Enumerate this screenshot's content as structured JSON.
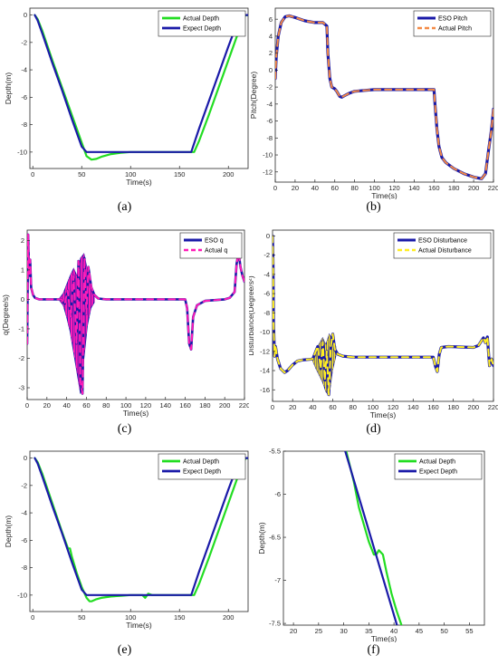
{
  "chart_data": [
    {
      "type": "line",
      "panel_label": "(a)",
      "title": "",
      "xlabel": "Time(s)",
      "ylabel": "Depth(m)",
      "xlim": [
        -3,
        222
      ],
      "ylim": [
        -11.2,
        0.5
      ],
      "xticks": [
        0,
        50,
        100,
        150,
        200
      ],
      "yticks": [
        0,
        -2,
        -4,
        -6,
        -8,
        -10
      ],
      "grid": false,
      "legend_position": "top-right",
      "series": [
        {
          "name": "Actual Depth",
          "color": "#22dd22",
          "width": 2.2,
          "x": [
            2,
            5,
            10,
            20,
            30,
            40,
            50,
            55,
            60,
            65,
            70,
            80,
            90,
            100,
            130,
            160,
            165,
            170,
            180,
            190,
            200,
            210,
            215,
            218,
            220
          ],
          "y": [
            0,
            -0.3,
            -1.2,
            -3.3,
            -5.3,
            -7.3,
            -9.3,
            -10.3,
            -10.55,
            -10.5,
            -10.35,
            -10.15,
            -10.05,
            -10,
            -10,
            -10,
            -10,
            -9.2,
            -7.3,
            -5.3,
            -3.3,
            -1.3,
            -0.2,
            0,
            0
          ]
        },
        {
          "name": "Expect Depth",
          "color": "#1a1aa8",
          "width": 2.2,
          "x": [
            2,
            5,
            10,
            20,
            30,
            40,
            50,
            55,
            100,
            130,
            162,
            170,
            180,
            190,
            200,
            210,
            213,
            215,
            220
          ],
          "y": [
            0,
            -0.4,
            -1.4,
            -3.5,
            -5.5,
            -7.6,
            -9.6,
            -10,
            -10,
            -10,
            -10,
            -8.3,
            -6.3,
            -4.3,
            -2.3,
            -0.4,
            0,
            0,
            0
          ]
        }
      ]
    },
    {
      "type": "line",
      "panel_label": "(b)",
      "title": "",
      "xlabel": "Time(s)",
      "ylabel": "Pitch(Degree)",
      "xlim": [
        0,
        220
      ],
      "ylim": [
        -13.2,
        7.3
      ],
      "xticks": [
        0,
        20,
        40,
        60,
        80,
        100,
        120,
        140,
        160,
        180,
        200,
        220
      ],
      "yticks": [
        6,
        4,
        2,
        0,
        -2,
        -4,
        -6,
        -8,
        -10,
        -12
      ],
      "grid": false,
      "legend_position": "top-right",
      "series": [
        {
          "name": "ESO Pitch",
          "color": "#1a1aa8",
          "width": 3.2,
          "x": [
            0,
            1,
            3,
            6,
            10,
            14,
            20,
            30,
            40,
            48,
            52,
            53,
            55,
            57,
            60,
            62,
            65,
            67,
            70,
            75,
            80,
            90,
            100,
            130,
            160,
            161,
            163,
            165,
            168,
            172,
            180,
            190,
            200,
            208,
            212,
            215,
            218,
            220
          ],
          "y": [
            -1,
            1.5,
            4,
            5.6,
            6.3,
            6.4,
            6.2,
            5.8,
            5.6,
            5.6,
            5.2,
            2,
            -1,
            -2,
            -2.2,
            -2.5,
            -3.1,
            -3.2,
            -3,
            -2.7,
            -2.5,
            -2.4,
            -2.3,
            -2.3,
            -2.3,
            -4,
            -7,
            -9,
            -10.3,
            -10.9,
            -11.6,
            -12.2,
            -12.6,
            -12.8,
            -12.2,
            -9.5,
            -7,
            -4.6
          ]
        },
        {
          "name": "Actual Pitch",
          "color": "#f48a45",
          "width": 2,
          "dash": "7,5",
          "x": [
            0,
            1,
            3,
            6,
            10,
            14,
            20,
            30,
            40,
            48,
            52,
            53,
            55,
            57,
            60,
            62,
            65,
            67,
            70,
            75,
            80,
            90,
            100,
            130,
            160,
            161,
            163,
            165,
            168,
            172,
            180,
            190,
            200,
            208,
            212,
            215,
            218,
            220
          ],
          "y": [
            -1,
            1.5,
            4,
            5.6,
            6.3,
            6.4,
            6.2,
            5.8,
            5.6,
            5.6,
            5.2,
            2,
            -1,
            -2,
            -2.2,
            -2.5,
            -3.1,
            -3.2,
            -3,
            -2.7,
            -2.5,
            -2.4,
            -2.3,
            -2.3,
            -2.3,
            -4,
            -7,
            -9,
            -10.3,
            -10.9,
            -11.6,
            -12.2,
            -12.6,
            -12.8,
            -12.2,
            -9.5,
            -7,
            -4.6
          ]
        }
      ]
    },
    {
      "type": "line",
      "panel_label": "(c)",
      "title": "",
      "xlabel": "Time(s)",
      "ylabel": "q(Degree/s)",
      "xlim": [
        0,
        220
      ],
      "ylim": [
        -3.4,
        2.35
      ],
      "xticks": [
        0,
        20,
        40,
        60,
        80,
        100,
        120,
        140,
        160,
        180,
        200,
        220
      ],
      "yticks": [
        2,
        1,
        0,
        -1,
        -2,
        -3
      ],
      "grid": false,
      "legend_position": "top-right",
      "series": [
        {
          "name": "ESO q",
          "color": "#1a1aa8",
          "width": 2.6,
          "x": [
            0,
            1,
            2,
            3,
            4,
            6,
            8,
            12,
            20,
            30,
            35,
            38,
            41,
            44,
            47,
            50,
            52,
            54,
            56,
            58,
            60,
            62,
            65,
            68,
            72,
            80,
            100,
            130,
            160,
            162,
            164,
            166,
            168,
            172,
            180,
            200,
            205,
            210,
            212,
            214,
            216,
            218,
            220
          ],
          "y": [
            -1.5,
            2.2,
            0.8,
            1.35,
            0.4,
            0.15,
            0.05,
            0,
            0,
            0,
            0,
            -0.15,
            0.3,
            -0.6,
            0.8,
            -1.5,
            1.3,
            -2.8,
            -3.2,
            1.4,
            -0.5,
            1.1,
            0.4,
            0.15,
            0.03,
            0,
            0,
            0,
            0,
            -0.3,
            -1.5,
            -1.7,
            -0.6,
            -0.2,
            -0.05,
            0,
            0.05,
            0.25,
            1.2,
            1.6,
            1.1,
            0.8,
            0.6
          ]
        },
        {
          "name": "Actual q",
          "color": "#ff1cb8",
          "width": 2,
          "dash": "7,5",
          "x": [
            0,
            1,
            2,
            3,
            4,
            6,
            8,
            12,
            20,
            30,
            35,
            38,
            41,
            44,
            47,
            50,
            52,
            54,
            56,
            58,
            60,
            62,
            65,
            68,
            72,
            80,
            100,
            130,
            160,
            162,
            164,
            166,
            168,
            172,
            180,
            200,
            205,
            210,
            212,
            214,
            216,
            218,
            220
          ],
          "y": [
            -1.5,
            2.2,
            0.8,
            1.35,
            0.4,
            0.15,
            0.05,
            0,
            0,
            0,
            0,
            -0.15,
            0.3,
            -0.6,
            0.8,
            -1.5,
            1.3,
            -2.8,
            -3.2,
            1.4,
            -0.5,
            1.1,
            0.4,
            0.15,
            0.03,
            0,
            0,
            0,
            0,
            -0.3,
            -1.5,
            -1.7,
            -0.6,
            -0.2,
            -0.05,
            0,
            0.05,
            0.25,
            1.2,
            1.6,
            1.1,
            0.8,
            0.6
          ]
        }
      ],
      "oscillation": {
        "x_start": 33,
        "x_end": 68,
        "upper": [
          0.05,
          0.2,
          0.5,
          0.8,
          1.05,
          0.8,
          1.4,
          1.55,
          1.0,
          0.45,
          0.1
        ],
        "lower": [
          -0.05,
          -0.2,
          -0.6,
          -1.1,
          -1.8,
          -2.5,
          -3.2,
          -2.0,
          -0.9,
          -0.3,
          -0.1
        ],
        "fill": "#ff1cb8",
        "edge": "#1a1aa8"
      }
    },
    {
      "type": "line",
      "panel_label": "(d)",
      "title": "",
      "xlabel": "Time(s)",
      "ylabel": "Disturbance(Degree/s²)",
      "xlim": [
        0,
        220
      ],
      "ylim": [
        -17.2,
        0.6
      ],
      "xticks": [
        0,
        20,
        40,
        60,
        80,
        100,
        120,
        140,
        160,
        180,
        200,
        220
      ],
      "yticks": [
        0,
        -2,
        -4,
        -6,
        -8,
        -10,
        -12,
        -14,
        -16
      ],
      "grid": false,
      "legend_position": "top-right",
      "series": [
        {
          "name": "ESO Disturbance",
          "color": "#1a1aa8",
          "width": 3.2,
          "x": [
            0,
            0.5,
            1,
            2,
            3,
            5,
            8,
            12,
            15,
            20,
            25,
            30,
            40,
            45,
            48,
            50,
            52,
            54,
            56,
            58,
            60,
            62,
            65,
            70,
            80,
            100,
            130,
            160,
            162,
            164,
            166,
            168,
            175,
            200,
            205,
            210,
            212,
            214,
            216,
            218,
            220
          ],
          "y": [
            0,
            -3,
            -9,
            -12.5,
            -11.5,
            -12.8,
            -13.8,
            -14.2,
            -14,
            -13.4,
            -13,
            -12.9,
            -12.8,
            -11.5,
            -13.8,
            -11,
            -15,
            -12,
            -16.5,
            -11.5,
            -10.2,
            -11.8,
            -12.3,
            -12.5,
            -12.6,
            -12.6,
            -12.6,
            -12.6,
            -13.5,
            -14.1,
            -12.3,
            -11.6,
            -11.5,
            -11.6,
            -11.4,
            -10.6,
            -11.1,
            -10.5,
            -13.5,
            -12.8,
            -13.5
          ]
        },
        {
          "name": "Actual Disturbance",
          "color": "#ffee22",
          "width": 2,
          "dash": "7,5",
          "x": [
            0,
            0.5,
            1,
            2,
            3,
            5,
            8,
            12,
            15,
            20,
            25,
            30,
            40,
            45,
            48,
            50,
            52,
            54,
            56,
            58,
            60,
            62,
            65,
            70,
            80,
            100,
            130,
            160,
            162,
            164,
            166,
            168,
            175,
            200,
            205,
            210,
            212,
            214,
            216,
            218,
            220
          ],
          "y": [
            0,
            -3,
            -9,
            -12.5,
            -11.5,
            -12.8,
            -13.8,
            -14.2,
            -14,
            -13.4,
            -13,
            -12.9,
            -12.8,
            -11.5,
            -13.8,
            -11,
            -15,
            -12,
            -16.5,
            -11.5,
            -10.2,
            -11.8,
            -12.3,
            -12.5,
            -12.6,
            -12.6,
            -12.6,
            -12.6,
            -13.5,
            -14.1,
            -12.3,
            -11.6,
            -11.5,
            -11.6,
            -11.4,
            -10.6,
            -11.1,
            -10.5,
            -13.5,
            -12.8,
            -13.5
          ]
        }
      ],
      "oscillation": {
        "x_start": 40,
        "x_end": 63,
        "upper": [
          -12.6,
          -11.8,
          -11.2,
          -10.6,
          -11.3,
          -10.2,
          -10.8,
          -11.5
        ],
        "lower": [
          -13,
          -13.8,
          -14.5,
          -15.2,
          -16.2,
          -16.6,
          -14,
          -12.5
        ],
        "fill": "#ffee22",
        "edge": "#1a1aa8"
      }
    },
    {
      "type": "line",
      "panel_label": "(e)",
      "title": "",
      "xlabel": "Time(s)",
      "ylabel": "Depth(m)",
      "xlim": [
        -3,
        222
      ],
      "ylim": [
        -11.2,
        0.5
      ],
      "xticks": [
        0,
        50,
        100,
        150,
        200
      ],
      "yticks": [
        0,
        -2,
        -4,
        -6,
        -8,
        -10
      ],
      "grid": false,
      "legend_position": "top-right",
      "series": [
        {
          "name": "Actual Depth",
          "color": "#22dd22",
          "width": 2.2,
          "x": [
            2,
            5,
            10,
            20,
            30,
            36,
            38,
            40,
            45,
            50,
            55,
            58,
            60,
            65,
            70,
            80,
            90,
            100,
            112,
            115,
            118,
            122,
            130,
            160,
            165,
            170,
            180,
            190,
            200,
            210,
            215,
            218,
            220
          ],
          "y": [
            0,
            -0.3,
            -1.2,
            -3.3,
            -5.4,
            -6.6,
            -6.6,
            -7.2,
            -8.4,
            -9.4,
            -10.2,
            -10.45,
            -10.45,
            -10.3,
            -10.2,
            -10.1,
            -10.05,
            -10,
            -10,
            -10.2,
            -9.9,
            -10,
            -10,
            -10,
            -10,
            -9.2,
            -7.3,
            -5.3,
            -3.3,
            -1.3,
            -0.3,
            0,
            0
          ]
        },
        {
          "name": "Expect Depth",
          "color": "#1a1aa8",
          "width": 2.2,
          "x": [
            2,
            5,
            10,
            20,
            30,
            40,
            50,
            55,
            100,
            130,
            162,
            170,
            180,
            190,
            200,
            210,
            213,
            215,
            220
          ],
          "y": [
            0,
            -0.4,
            -1.4,
            -3.5,
            -5.5,
            -7.6,
            -9.6,
            -10,
            -10,
            -10,
            -10,
            -8.3,
            -6.3,
            -4.3,
            -2.3,
            -0.4,
            0,
            0,
            0
          ]
        }
      ]
    },
    {
      "type": "line",
      "panel_label": "(f)",
      "title": "",
      "xlabel": "Time(s)",
      "ylabel": "Depth(m)",
      "xlim": [
        18,
        58
      ],
      "ylim": [
        -7.52,
        -5.5
      ],
      "xticks": [
        20,
        25,
        30,
        35,
        40,
        45,
        50,
        55
      ],
      "yticks": [
        -5.5,
        -6,
        -6.5,
        -7,
        -7.5
      ],
      "ytick_labels": [
        "-5.5",
        "-6",
        "-6.5",
        "-7",
        "-7.5"
      ],
      "grid": false,
      "legend_position": "top-right",
      "series": [
        {
          "name": "Actual Depth",
          "color": "#22dd22",
          "width": 2.2,
          "x": [
            30.5,
            32,
            33,
            34,
            35,
            36,
            36.5,
            37,
            37.8,
            38.5,
            39.5,
            40.5,
            41.5
          ],
          "y": [
            -5.5,
            -5.85,
            -6.15,
            -6.35,
            -6.55,
            -6.7,
            -6.7,
            -6.65,
            -6.7,
            -6.9,
            -7.15,
            -7.35,
            -7.52
          ]
        },
        {
          "name": "Expect Depth",
          "color": "#1a1aa8",
          "width": 2.2,
          "x": [
            30.3,
            40.6
          ],
          "y": [
            -5.5,
            -7.52
          ]
        }
      ]
    }
  ]
}
